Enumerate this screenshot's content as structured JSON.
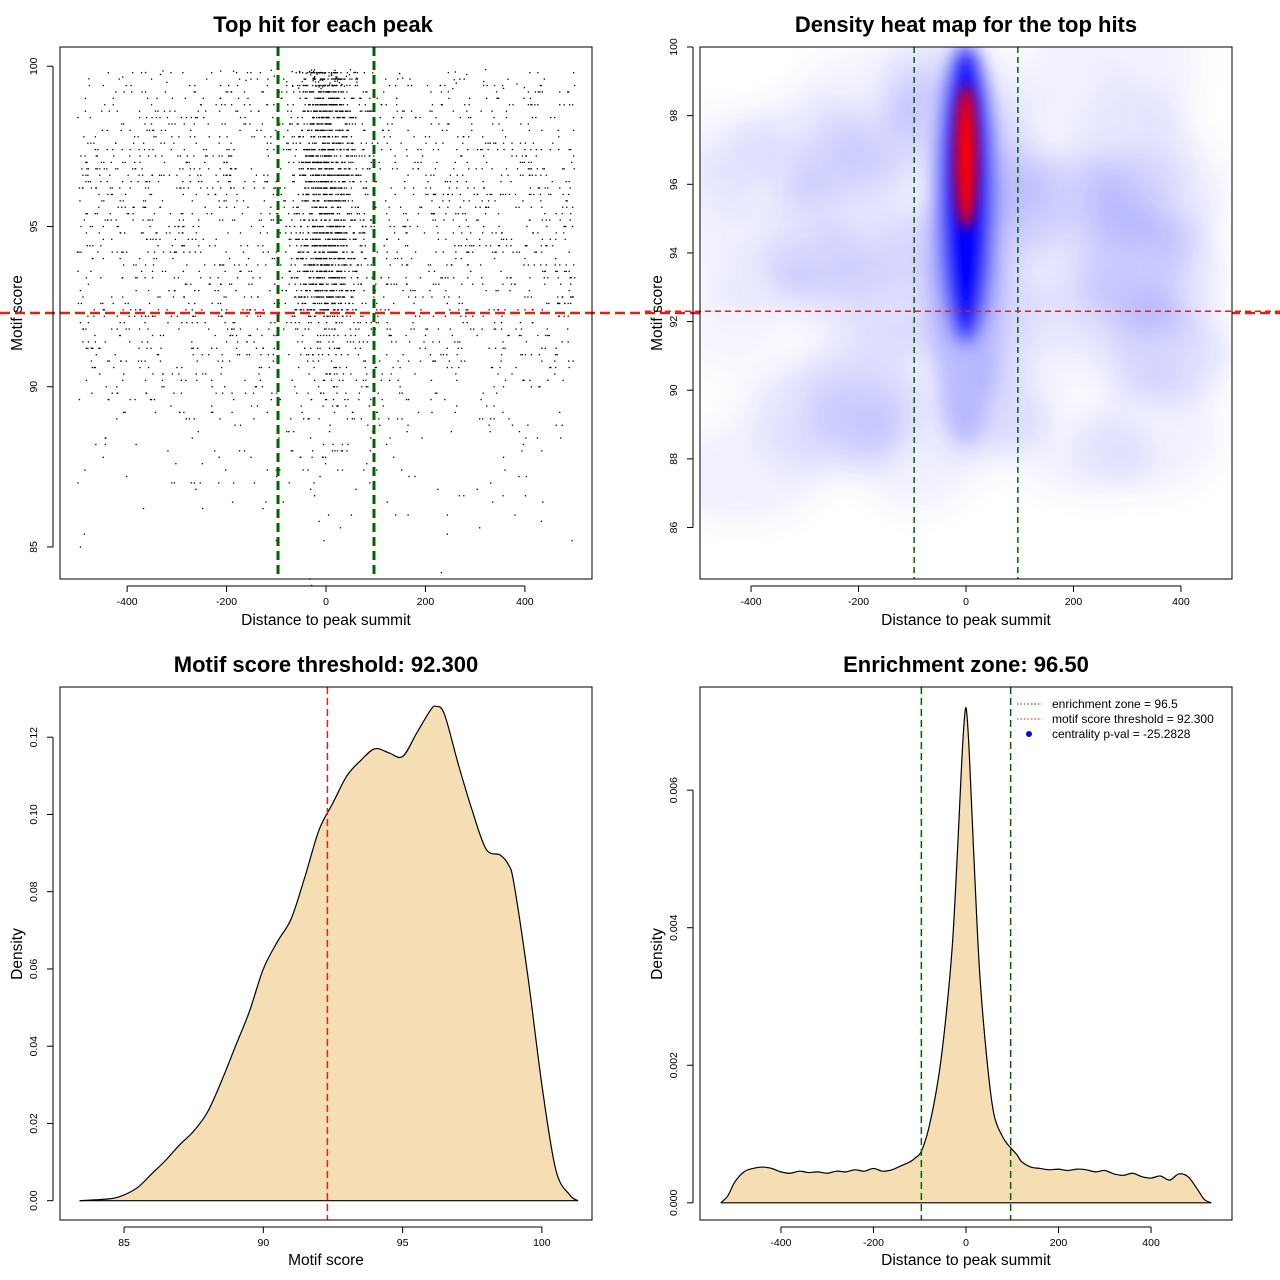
{
  "chart_data": [
    {
      "id": "scatter",
      "type": "scatter",
      "title": "Top hit for each peak",
      "xlabel": "Distance to peak summit",
      "ylabel": "Motif score",
      "xlim": [
        -535,
        535
      ],
      "ylim": [
        84,
        100.6
      ],
      "xticks": [
        -400,
        -200,
        0,
        200,
        400
      ],
      "xtick_labels": [
        "-400",
        "-200",
        "0",
        "200",
        "400"
      ],
      "yticks": [
        85,
        90,
        95,
        100
      ],
      "ytick_labels": [
        "85",
        "90",
        "95",
        "100"
      ],
      "vlines": [
        -96.5,
        96.5
      ],
      "hline": 92.3,
      "vline_color": "#006400",
      "hline_color": "#e0201b",
      "point_color": "#000000",
      "n_points": 3800,
      "grid": false
    },
    {
      "id": "heatmap",
      "type": "heatmap",
      "title": "Density heat map for the top hits",
      "xlabel": "Distance to peak summit",
      "ylabel": "Motif score",
      "xlim": [
        -495,
        495
      ],
      "ylim": [
        84.5,
        100
      ],
      "xticks": [
        -400,
        -200,
        0,
        200,
        400
      ],
      "xtick_labels": [
        "-400",
        "-200",
        "0",
        "200",
        "400"
      ],
      "yticks": [
        86,
        88,
        90,
        92,
        94,
        96,
        98,
        100
      ],
      "ytick_labels": [
        "86",
        "88",
        "90",
        "92",
        "94",
        "96",
        "98",
        "100"
      ],
      "vlines": [
        -96.5,
        96.5
      ],
      "hline": 92.3,
      "colormap": [
        "#ffffff",
        "#0000ff",
        "#ff0000"
      ],
      "peak": {
        "x": 0,
        "y": 96.8
      },
      "vline_color": "#006400",
      "hline_color": "#e0201b",
      "grid": false
    },
    {
      "id": "score-density",
      "type": "area",
      "title": "Motif score threshold: 92.300",
      "xlabel": "Motif score",
      "ylabel": "Density",
      "xlim": [
        82.7,
        101.8
      ],
      "ylim": [
        -0.005,
        0.133
      ],
      "xticks": [
        85,
        90,
        95,
        100
      ],
      "xtick_labels": [
        "85",
        "90",
        "95",
        "100"
      ],
      "yticks": [
        0,
        0.02,
        0.04,
        0.06,
        0.08,
        0.1,
        0.12
      ],
      "ytick_labels": [
        "0.00",
        "0.02",
        "0.04",
        "0.06",
        "0.08",
        "0.10",
        "0.12"
      ],
      "x": [
        83.4,
        84.5,
        85,
        85.5,
        86,
        86.5,
        87,
        87.5,
        88,
        88.5,
        89,
        89.5,
        90,
        90.5,
        91,
        91.5,
        92,
        92.5,
        93,
        93.5,
        94,
        94.5,
        95,
        95.5,
        96,
        96.2,
        96.5,
        97,
        97.5,
        98,
        98.5,
        98.8,
        99,
        99.5,
        100,
        100.5,
        101,
        101.3
      ],
      "y": [
        0,
        0.0005,
        0.0015,
        0.0035,
        0.007,
        0.0105,
        0.0145,
        0.018,
        0.023,
        0.031,
        0.04,
        0.049,
        0.06,
        0.067,
        0.073,
        0.084,
        0.096,
        0.103,
        0.11,
        0.114,
        0.117,
        0.116,
        0.115,
        0.121,
        0.127,
        0.128,
        0.126,
        0.113,
        0.101,
        0.091,
        0.0895,
        0.087,
        0.082,
        0.058,
        0.03,
        0.008,
        0.0015,
        0
      ],
      "fill_color": "#f5deb3",
      "vline": 92.3,
      "vline_color": "#e0201b",
      "grid": false
    },
    {
      "id": "distance-density",
      "type": "area",
      "title": "Enrichment zone: 96.50",
      "xlabel": "Distance to peak summit",
      "ylabel": "Density",
      "xlim": [
        -575,
        575
      ],
      "ylim": [
        -0.00025,
        0.0075
      ],
      "xticks": [
        -400,
        -200,
        0,
        200,
        400
      ],
      "xtick_labels": [
        "-400",
        "-200",
        "0",
        "200",
        "400"
      ],
      "yticks": [
        0,
        0.002,
        0.004,
        0.006
      ],
      "ytick_labels": [
        "0.000",
        "0.002",
        "0.004",
        "0.006"
      ],
      "x": [
        -530,
        -515,
        -500,
        -480,
        -460,
        -440,
        -420,
        -400,
        -380,
        -360,
        -340,
        -320,
        -300,
        -280,
        -260,
        -240,
        -220,
        -200,
        -180,
        -160,
        -140,
        -120,
        -110,
        -96.5,
        -80,
        -60,
        -45,
        -30,
        -20,
        -10,
        -5,
        0,
        5,
        10,
        20,
        30,
        45,
        60,
        80,
        96.5,
        110,
        120,
        140,
        160,
        180,
        200,
        220,
        240,
        260,
        280,
        300,
        320,
        340,
        360,
        380,
        400,
        420,
        440,
        460,
        480,
        500,
        515,
        530
      ],
      "y": [
        0,
        0.0001,
        0.0003,
        0.00045,
        0.0005,
        0.00052,
        0.0005,
        0.00045,
        0.00043,
        0.00046,
        0.00044,
        0.00045,
        0.00043,
        0.00046,
        0.00045,
        0.00048,
        0.00046,
        0.0005,
        0.00046,
        0.00048,
        0.00054,
        0.0006,
        0.00065,
        0.00075,
        0.0011,
        0.0018,
        0.0026,
        0.0037,
        0.0049,
        0.0063,
        0.0069,
        0.0072,
        0.0068,
        0.0061,
        0.0046,
        0.0033,
        0.0021,
        0.0013,
        0.00095,
        0.0008,
        0.0007,
        0.0006,
        0.00052,
        0.0005,
        0.00048,
        0.00049,
        0.00047,
        0.00049,
        0.00048,
        0.00045,
        0.00047,
        0.00042,
        0.0004,
        0.00043,
        0.00038,
        0.00036,
        0.00039,
        0.00033,
        0.00042,
        0.00038,
        0.0002,
        5e-05,
        0
      ],
      "fill_color": "#f5deb3",
      "vlines": [
        -96.5,
        96.5
      ],
      "vline_color": "#006400",
      "legend": {
        "position": "top-right",
        "entries": [
          {
            "label": "enrichment zone = 96.5",
            "style": "dotted",
            "color": "#006400"
          },
          {
            "label": "motif score threshold = 92.300",
            "style": "dotted",
            "color": "#e0201b"
          },
          {
            "label": "centrality p-val = -25.2828",
            "style": "point",
            "color": "#0000ff"
          }
        ]
      },
      "grid": false
    }
  ]
}
